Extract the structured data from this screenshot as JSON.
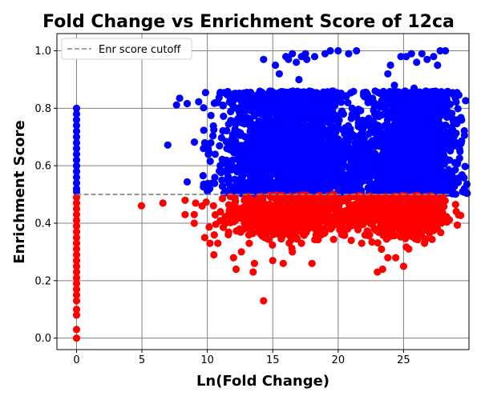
{
  "chart_data": {
    "type": "scatter",
    "title": "Fold Change vs Enrichment Score of 12ca",
    "xlabel": "Ln(Fold Change)",
    "ylabel": "Enrichment Score",
    "xlim": [
      -1.5,
      30
    ],
    "ylim": [
      -0.04,
      1.06
    ],
    "xticks": [
      0,
      5,
      10,
      15,
      20,
      25
    ],
    "yticks": [
      0.0,
      0.2,
      0.4,
      0.6,
      0.8,
      1.0
    ],
    "xtick_labels": [
      "0",
      "5",
      "10",
      "15",
      "20",
      "25"
    ],
    "ytick_labels": [
      "0.0",
      "0.2",
      "0.4",
      "0.6",
      "0.8",
      "1.0"
    ],
    "grid": true,
    "legend": {
      "position": "top-left",
      "entries": [
        "Enr score cutoff"
      ]
    },
    "cutoff": {
      "y": 0.5,
      "x_range": [
        0,
        28.5
      ],
      "style": "dashed",
      "color": "#808080",
      "label": "Enr score cutoff"
    },
    "colors": {
      "above": "#0000ff",
      "below": "#ff0000"
    },
    "series": [
      {
        "color": "#0000ff",
        "points": [
          [
            0,
            0.8
          ],
          [
            0,
            0.78
          ],
          [
            0,
            0.76
          ],
          [
            0,
            0.74
          ],
          [
            0,
            0.72
          ],
          [
            0,
            0.7
          ],
          [
            0,
            0.68
          ],
          [
            0,
            0.66
          ],
          [
            0,
            0.64
          ],
          [
            0,
            0.62
          ],
          [
            0,
            0.6
          ],
          [
            0,
            0.58
          ],
          [
            0,
            0.56
          ],
          [
            0,
            0.54
          ],
          [
            0,
            0.52
          ],
          [
            0,
            0.51
          ],
          [
            9.8,
            0.68
          ],
          [
            9.7,
            0.66
          ],
          [
            10.4,
            0.54
          ],
          [
            10.6,
            0.64
          ],
          [
            10.8,
            0.82
          ],
          [
            11.2,
            0.58
          ],
          [
            11.5,
            0.66
          ],
          [
            12.1,
            0.72
          ],
          [
            12.6,
            0.75
          ],
          [
            12.3,
            0.55
          ],
          [
            13.0,
            0.62
          ],
          [
            13.4,
            0.7
          ],
          [
            13.8,
            0.58
          ],
          [
            14.0,
            0.81
          ],
          [
            14.3,
            0.97
          ],
          [
            14.6,
            0.76
          ],
          [
            15.2,
            0.95
          ],
          [
            15.5,
            0.92
          ],
          [
            15.8,
            0.85
          ],
          [
            16.0,
            0.98
          ],
          [
            16.2,
            0.97
          ],
          [
            16.5,
            0.99
          ],
          [
            16.8,
            0.96
          ],
          [
            17.2,
            0.98
          ],
          [
            17.5,
            0.99
          ],
          [
            17.0,
            0.9
          ],
          [
            17.6,
            0.97
          ],
          [
            18.2,
            0.98
          ],
          [
            18.5,
            0.84
          ],
          [
            19.0,
            0.99
          ],
          [
            19.4,
            1.0
          ],
          [
            20.0,
            1.0
          ],
          [
            20.8,
            0.99
          ],
          [
            21.4,
            1.0
          ],
          [
            19.2,
            0.7
          ],
          [
            19.8,
            0.64
          ],
          [
            20.3,
            0.79
          ],
          [
            20.6,
            0.71
          ],
          [
            21.0,
            0.66
          ],
          [
            21.3,
            0.62
          ],
          [
            21.6,
            0.55
          ],
          [
            22.0,
            0.65
          ],
          [
            22.6,
            0.82
          ],
          [
            22.8,
            0.78
          ],
          [
            23.2,
            0.73
          ],
          [
            23.6,
            0.82
          ],
          [
            23.8,
            0.92
          ],
          [
            24.0,
            0.95
          ],
          [
            24.3,
            0.88
          ],
          [
            24.8,
            0.98
          ],
          [
            25.2,
            0.98
          ],
          [
            25.6,
            0.99
          ],
          [
            26.0,
            0.96
          ],
          [
            26.4,
            0.99
          ],
          [
            26.8,
            0.97
          ],
          [
            27.3,
            0.98
          ],
          [
            27.8,
            1.0
          ],
          [
            28.2,
            1.0
          ],
          [
            27.6,
            0.95
          ],
          [
            27.2,
            0.81
          ],
          [
            26.9,
            0.85
          ],
          [
            25.8,
            0.87
          ],
          [
            27.5,
            0.66
          ],
          [
            27.9,
            0.56
          ],
          [
            28.0,
            0.67
          ],
          [
            25.0,
            0.8
          ],
          [
            24.6,
            0.76
          ],
          [
            26.2,
            0.71
          ]
        ],
        "clusters": [
          {
            "center": [
              16.0,
              0.65
            ],
            "spread": [
              2.4,
              0.14
            ],
            "count": 1800
          },
          {
            "center": [
              25.8,
              0.65
            ],
            "spread": [
              1.7,
              0.14
            ],
            "count": 1500
          },
          {
            "center": [
              20.8,
              0.6
            ],
            "spread": [
              1.6,
              0.07
            ],
            "count": 350
          }
        ]
      },
      {
        "color": "#ff0000",
        "points": [
          [
            0,
            0.49
          ],
          [
            0,
            0.47
          ],
          [
            0,
            0.45
          ],
          [
            0,
            0.43
          ],
          [
            0,
            0.41
          ],
          [
            0,
            0.39
          ],
          [
            0,
            0.37
          ],
          [
            0,
            0.35
          ],
          [
            0,
            0.33
          ],
          [
            0,
            0.31
          ],
          [
            0,
            0.29
          ],
          [
            0,
            0.27
          ],
          [
            0,
            0.25
          ],
          [
            0,
            0.23
          ],
          [
            0,
            0.21
          ],
          [
            0,
            0.19
          ],
          [
            0,
            0.17
          ],
          [
            0,
            0.15
          ],
          [
            0,
            0.13
          ],
          [
            0,
            0.1
          ],
          [
            0,
            0.08
          ],
          [
            0,
            0.03
          ],
          [
            0,
            0.0
          ],
          [
            6.6,
            0.47
          ],
          [
            8.3,
            0.48
          ],
          [
            8.3,
            0.43
          ],
          [
            9.1,
            0.47
          ],
          [
            9.0,
            0.43
          ],
          [
            9.0,
            0.4
          ],
          [
            9.6,
            0.46
          ],
          [
            9.8,
            0.35
          ],
          [
            10.2,
            0.33
          ],
          [
            10.5,
            0.29
          ],
          [
            10.8,
            0.33
          ],
          [
            11.0,
            0.44
          ],
          [
            11.4,
            0.4
          ],
          [
            11.6,
            0.36
          ],
          [
            12.0,
            0.28
          ],
          [
            12.2,
            0.24
          ],
          [
            12.6,
            0.3
          ],
          [
            13.2,
            0.33
          ],
          [
            13.6,
            0.26
          ],
          [
            13.5,
            0.23
          ],
          [
            14.3,
            0.13
          ],
          [
            15.0,
            0.27
          ],
          [
            15.8,
            0.26
          ],
          [
            16.5,
            0.3
          ],
          [
            17.2,
            0.33
          ],
          [
            18.0,
            0.26
          ],
          [
            18.8,
            0.38
          ],
          [
            19.8,
            0.4
          ],
          [
            20.3,
            0.36
          ],
          [
            20.6,
            0.43
          ],
          [
            21.0,
            0.34
          ],
          [
            21.4,
            0.39
          ],
          [
            21.8,
            0.33
          ],
          [
            22.4,
            0.36
          ],
          [
            23.0,
            0.23
          ],
          [
            23.4,
            0.24
          ],
          [
            23.8,
            0.28
          ],
          [
            24.4,
            0.28
          ],
          [
            25.0,
            0.25
          ],
          [
            25.4,
            0.31
          ],
          [
            26.0,
            0.36
          ],
          [
            26.6,
            0.33
          ],
          [
            27.0,
            0.4
          ],
          [
            27.2,
            0.46
          ],
          [
            19.6,
            0.5
          ],
          [
            20.5,
            0.48
          ],
          [
            22.0,
            0.45
          ]
        ],
        "clusters": [
          {
            "center": [
              16.0,
              0.43
            ],
            "spread": [
              2.3,
              0.04
            ],
            "count": 600
          },
          {
            "center": [
              25.0,
              0.43
            ],
            "spread": [
              1.6,
              0.04
            ],
            "count": 550
          },
          {
            "center": [
              20.8,
              0.44
            ],
            "spread": [
              1.3,
              0.03
            ],
            "count": 80
          }
        ]
      }
    ]
  }
}
